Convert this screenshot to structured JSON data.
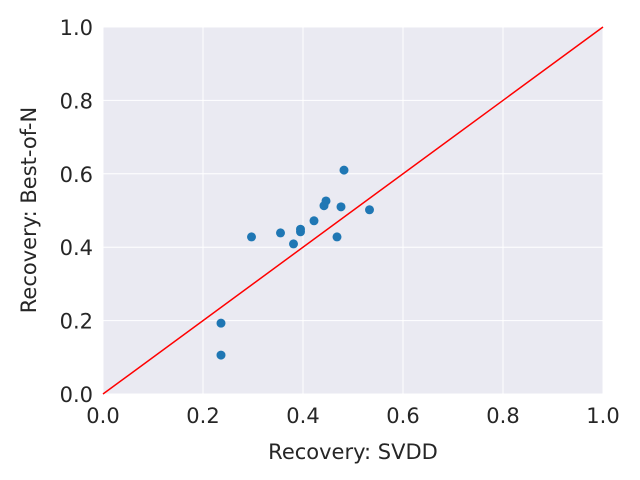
{
  "chart_data": {
    "type": "scatter",
    "title": "",
    "xlabel": "Recovery: SVDD",
    "ylabel": "Recovery: Best-of-N",
    "xlim": [
      0.0,
      1.0
    ],
    "ylim": [
      0.0,
      1.0
    ],
    "xticks": [
      "0.0",
      "0.2",
      "0.4",
      "0.6",
      "0.8",
      "1.0"
    ],
    "yticks": [
      "0.0",
      "0.2",
      "0.4",
      "0.6",
      "0.8",
      "1.0"
    ],
    "grid": true,
    "series": [
      {
        "marker_color": "#1f77b4",
        "points": [
          {
            "x": 0.236,
            "y": 0.193
          },
          {
            "x": 0.236,
            "y": 0.106
          },
          {
            "x": 0.297,
            "y": 0.428
          },
          {
            "x": 0.355,
            "y": 0.439
          },
          {
            "x": 0.381,
            "y": 0.409
          },
          {
            "x": 0.395,
            "y": 0.449
          },
          {
            "x": 0.395,
            "y": 0.442
          },
          {
            "x": 0.422,
            "y": 0.472
          },
          {
            "x": 0.442,
            "y": 0.513
          },
          {
            "x": 0.446,
            "y": 0.526
          },
          {
            "x": 0.468,
            "y": 0.428
          },
          {
            "x": 0.476,
            "y": 0.51
          },
          {
            "x": 0.482,
            "y": 0.61
          },
          {
            "x": 0.533,
            "y": 0.502
          }
        ]
      }
    ],
    "reference_line": {
      "from": [
        0.0,
        0.0
      ],
      "to": [
        1.0,
        1.0
      ],
      "color": "#ff0000"
    },
    "plot_background": "#eaeaf2",
    "grid_color": "#ffffff"
  }
}
